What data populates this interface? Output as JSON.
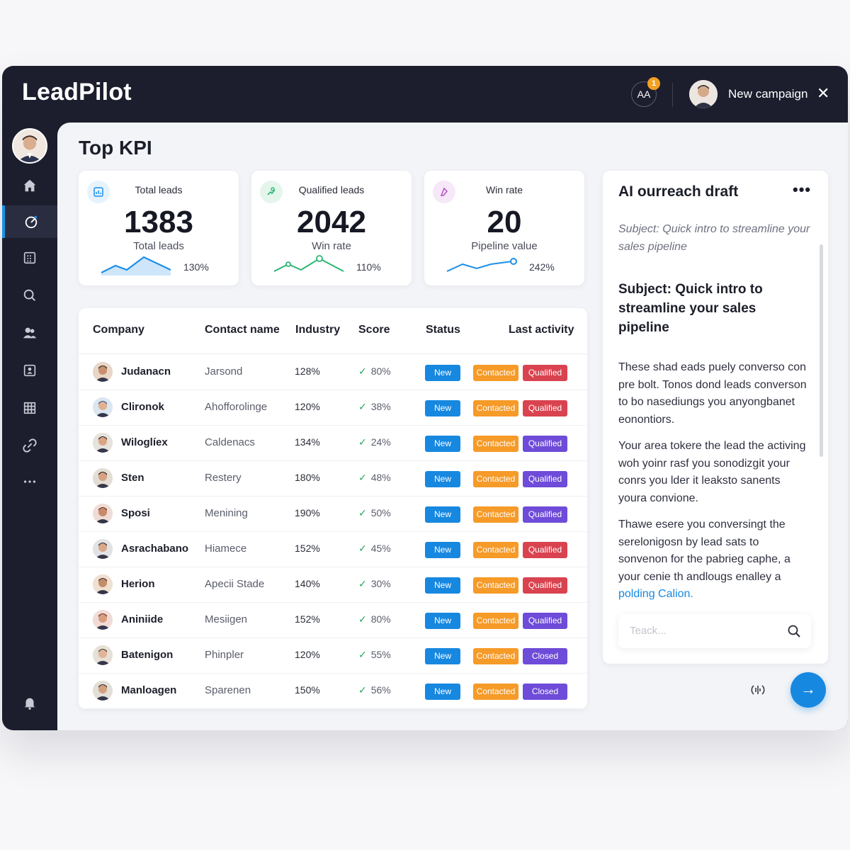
{
  "app": {
    "name": "LeadPilot",
    "notification_badge": "AA",
    "notification_count": "1",
    "campaign_label": "New campaign"
  },
  "sidebar": {
    "items": [
      {
        "icon": "home-icon"
      },
      {
        "icon": "dashboard-gauge-icon",
        "active": true
      },
      {
        "icon": "calendar-icon"
      },
      {
        "icon": "search-icon"
      },
      {
        "icon": "users-icon"
      },
      {
        "icon": "reports-icon"
      },
      {
        "icon": "grid-icon"
      },
      {
        "icon": "link-icon"
      },
      {
        "icon": "more-icon"
      }
    ],
    "bottom_icon": "alerts-icon"
  },
  "page": {
    "title": "Top KPI"
  },
  "kpis": [
    {
      "label": "Total leads",
      "value": "1383",
      "sub": "Total leads",
      "pct": "130%",
      "color": "#1d8fe8"
    },
    {
      "label": "Qualified leads",
      "value": "2042",
      "sub": "Win rate",
      "pct": "110%",
      "color": "#2bb673"
    },
    {
      "label": "Win rate",
      "value": "20",
      "sub": "Pipeline value",
      "pct": "242%",
      "color": "#1d8fe8"
    }
  ],
  "table": {
    "headers": {
      "company": "Company",
      "contact": "Contact name",
      "industry": "Industry",
      "score": "Score",
      "status": "Status",
      "last_activity": "Last activity"
    },
    "rows": [
      {
        "company": "Judanacn",
        "contact": "Jarsond",
        "industry": "128%",
        "score": "80%",
        "status": "New",
        "stage": "Contacted",
        "result": "Qualified",
        "result_color": "#d9434f"
      },
      {
        "company": "Clironok",
        "contact": "Ahofforolinge",
        "industry": "120%",
        "score": "38%",
        "status": "New",
        "stage": "Contacted",
        "result": "Qualified",
        "result_color": "#d9434f"
      },
      {
        "company": "Wiloglíex",
        "contact": "Caldenacs",
        "industry": "134%",
        "score": "24%",
        "status": "New",
        "stage": "Contacted",
        "result": "Qualified",
        "result_color": "#6e4bd8"
      },
      {
        "company": "Sten",
        "contact": "Restery",
        "industry": "180%",
        "score": "48%",
        "status": "New",
        "stage": "Contacted",
        "result": "Qualified",
        "result_color": "#6e4bd8"
      },
      {
        "company": "Sposi",
        "contact": "Menining",
        "industry": "190%",
        "score": "50%",
        "status": "New",
        "stage": "Contacted",
        "result": "Qualified",
        "result_color": "#6e4bd8"
      },
      {
        "company": "Asrachabano",
        "contact": "Hiamece",
        "industry": "152%",
        "score": "45%",
        "status": "New",
        "stage": "Contacted",
        "result": "Qualified",
        "result_color": "#d9434f"
      },
      {
        "company": "Herion",
        "contact": "Apecii Stade",
        "industry": "140%",
        "score": "30%",
        "status": "New",
        "stage": "Contacted",
        "result": "Qualified",
        "result_color": "#d9434f"
      },
      {
        "company": "Aniniide",
        "contact": "Mesiigen",
        "industry": "152%",
        "score": "80%",
        "status": "New",
        "stage": "Contacted",
        "result": "Qualified",
        "result_color": "#6e4bd8"
      },
      {
        "company": "Batenigon",
        "contact": "Phinpler",
        "industry": "120%",
        "score": "55%",
        "status": "New",
        "stage": "Contacted",
        "result": "Closed",
        "result_color": "#6e4bd8"
      },
      {
        "company": "Manloagen",
        "contact": "Sparenen",
        "industry": "150%",
        "score": "56%",
        "status": "New",
        "stage": "Contacted",
        "result": "Closed",
        "result_color": "#6e4bd8"
      }
    ]
  },
  "ai": {
    "title": "AI ourreach draft",
    "more": "•••",
    "subject_preview": "Subject: Quick intro to streamline your sales pipeline",
    "subject": "Subject: Quick intro to streamline your sales pipeline",
    "paragraphs": [
      "These shad eads puely converso con pre bolt. Tonos dond leads converson to bo nasediungs you anyongbanet eonontiors.",
      "Your area tokere the lead the activing woh yoinr rasf you sonodizgit your conrs you lder it leaksto sanents youra convione.",
      "Thawe esere you conversingt the serelonigosn by lead sats to sonvenon for the pabrieg caphe, a your cenie th andlougs enalley a"
    ],
    "link_text": "polding Calion.",
    "search_placeholder": "Teack..."
  }
}
